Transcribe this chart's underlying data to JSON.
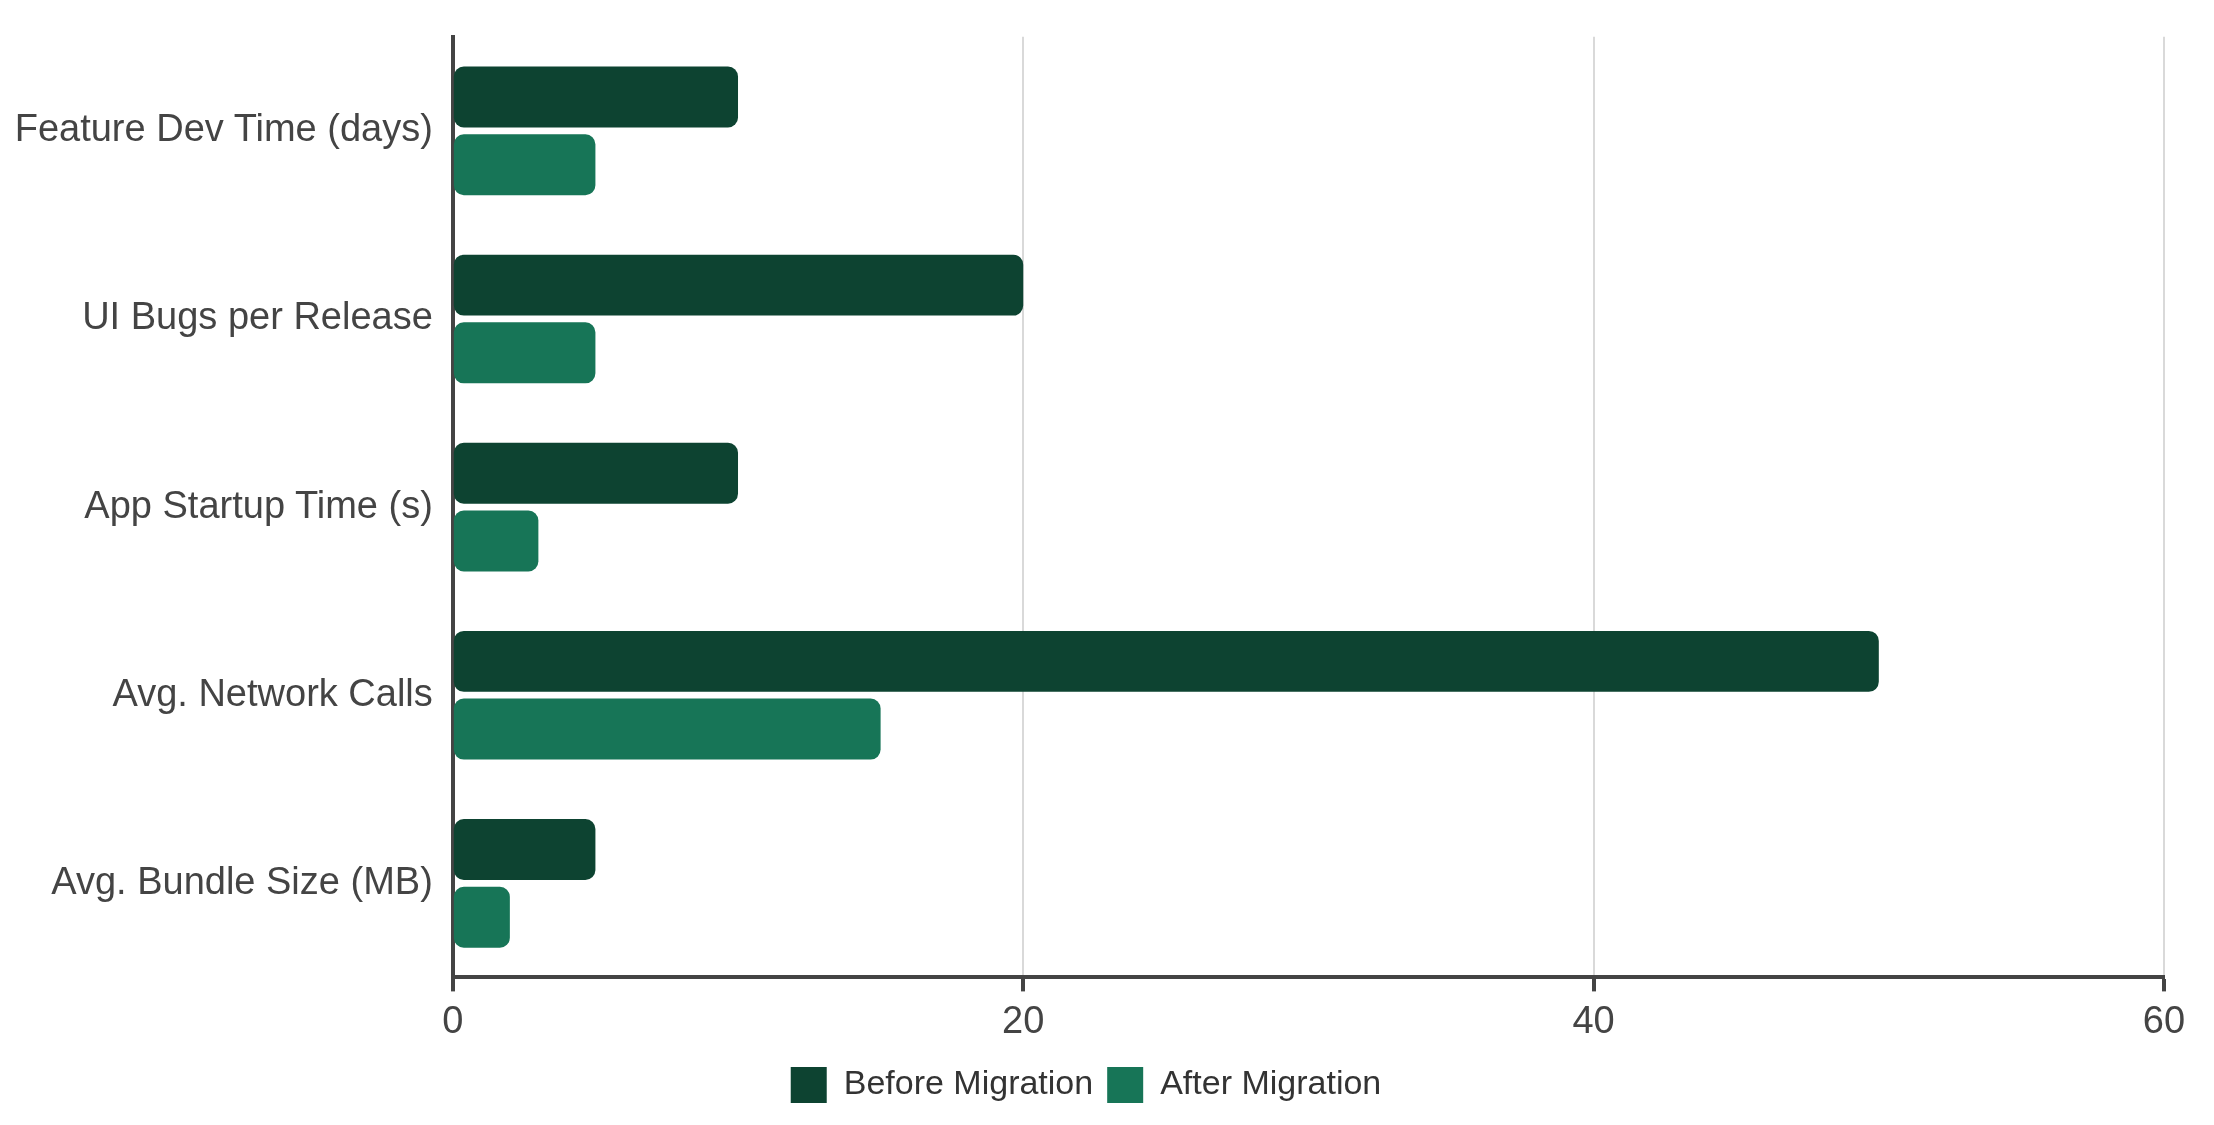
{
  "chart_data": {
    "type": "bar",
    "orientation": "horizontal",
    "categories": [
      "Feature Dev Time (days)",
      "UI Bugs per Release",
      "App Startup Time (s)",
      "Avg. Network Calls",
      "Avg. Bundle Size (MB)"
    ],
    "series": [
      {
        "name": "Before Migration",
        "color": "#0d4331",
        "values": [
          10,
          20,
          10,
          50,
          5
        ]
      },
      {
        "name": "After Migration",
        "color": "#177557",
        "values": [
          5,
          5,
          3,
          15,
          2
        ]
      }
    ],
    "xlim": [
      0,
      60
    ],
    "xticks": [
      0,
      20,
      40,
      60
    ],
    "grid": "x",
    "legend": "bottom"
  }
}
